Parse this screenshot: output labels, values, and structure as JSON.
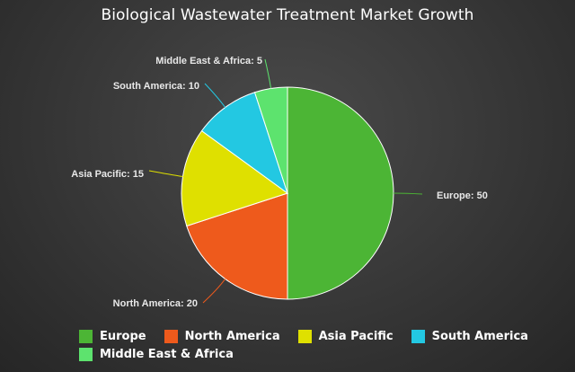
{
  "chart_data": {
    "type": "pie",
    "title": "Biological Wastewater Treatment Market Growth",
    "categories": [
      "Europe",
      "North America",
      "Asia Pacific",
      "South America",
      "Middle East & Africa"
    ],
    "values": [
      50,
      20,
      15,
      10,
      5
    ],
    "colors": [
      "#4cb535",
      "#ee5a1c",
      "#dfe000",
      "#23c8e2",
      "#5de36e"
    ],
    "data_labels": [
      "Europe: 50",
      "North America: 20",
      "Asia Pacific: 15",
      "South America: 10",
      "Middle East & Africa: 5"
    ],
    "legend_position": "bottom",
    "start_angle": "top, clockwise"
  }
}
